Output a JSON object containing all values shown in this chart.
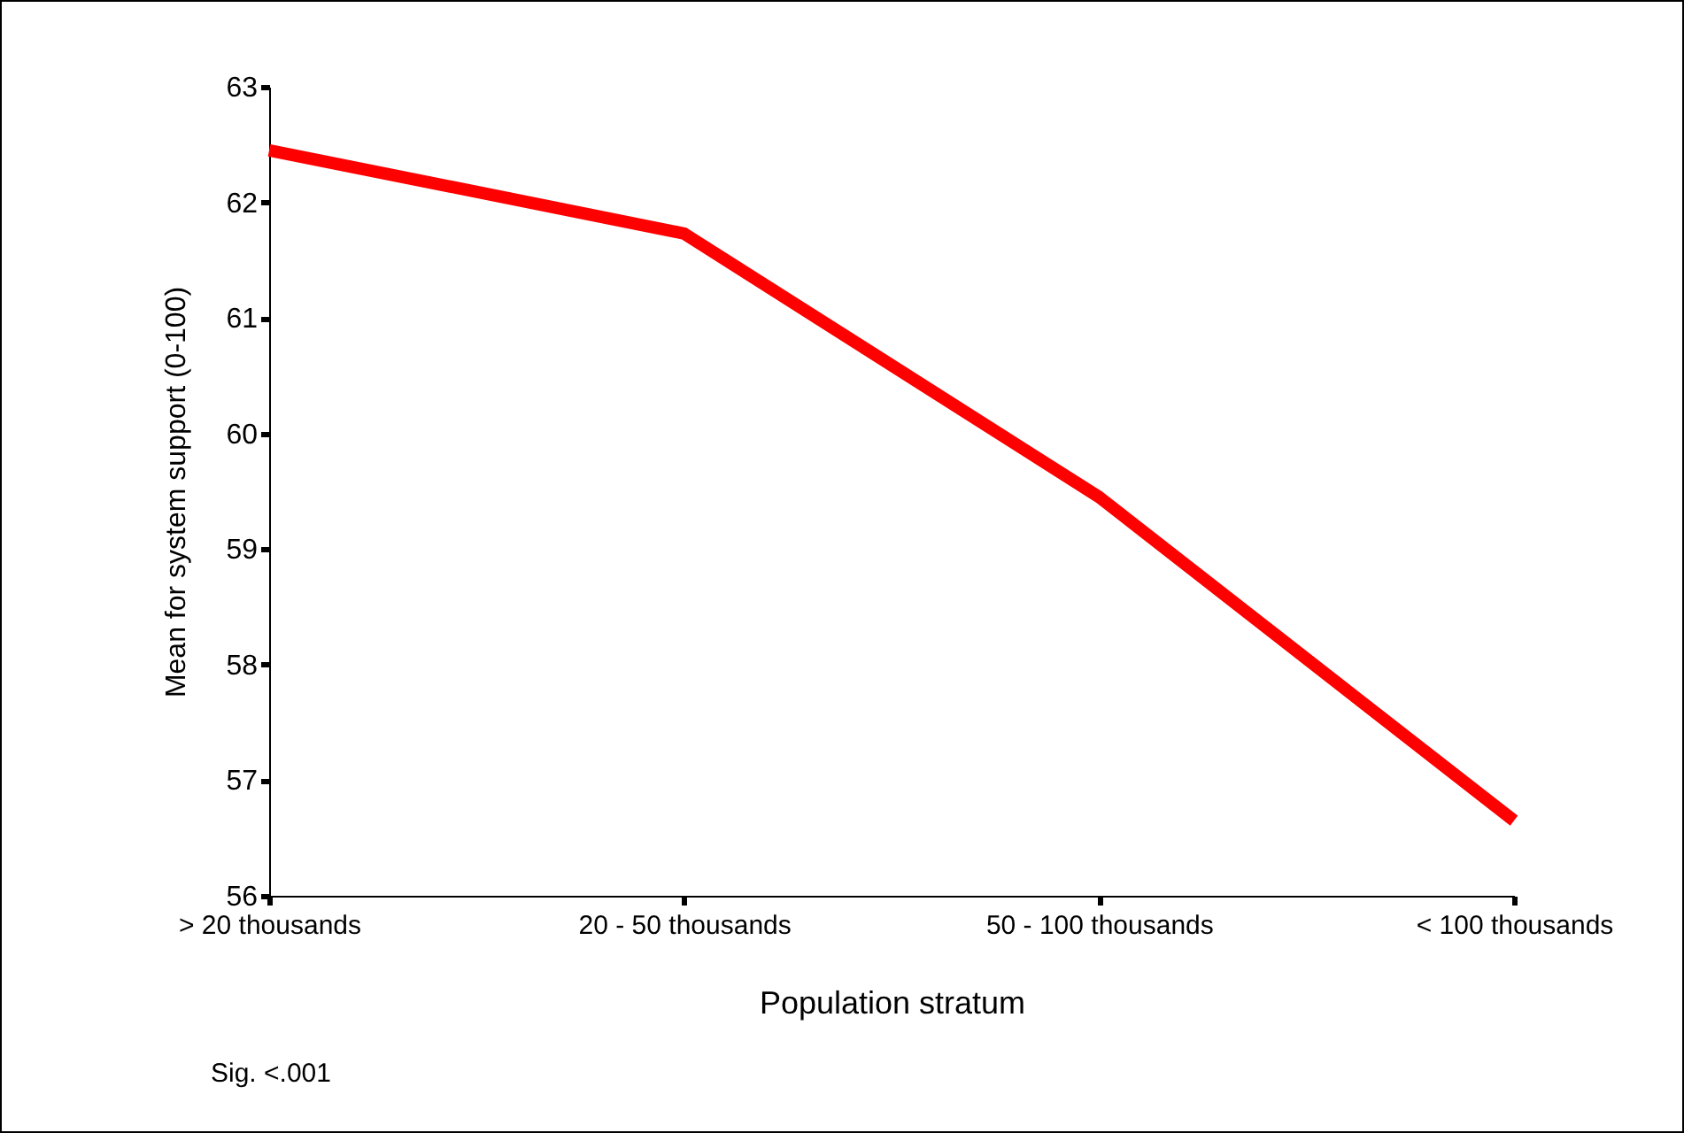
{
  "chart_data": {
    "type": "line",
    "xlabel": "Population stratum",
    "ylabel": "Mean for system support (0-100)",
    "categories": [
      "> 20 thousands",
      "20 - 50 thousands",
      "50 - 100 thousands",
      "< 100 thousands"
    ],
    "series": [
      {
        "color": "#ff0000",
        "values": [
          62.45,
          61.73,
          59.45,
          56.65
        ]
      }
    ],
    "ylim": [
      56,
      63
    ],
    "yticks": [
      56,
      57,
      58,
      59,
      60,
      61,
      62,
      63
    ],
    "grid": false,
    "legend": false,
    "marker": "none",
    "line_style": "solid",
    "annotations": [
      "Sig. <.001"
    ]
  }
}
